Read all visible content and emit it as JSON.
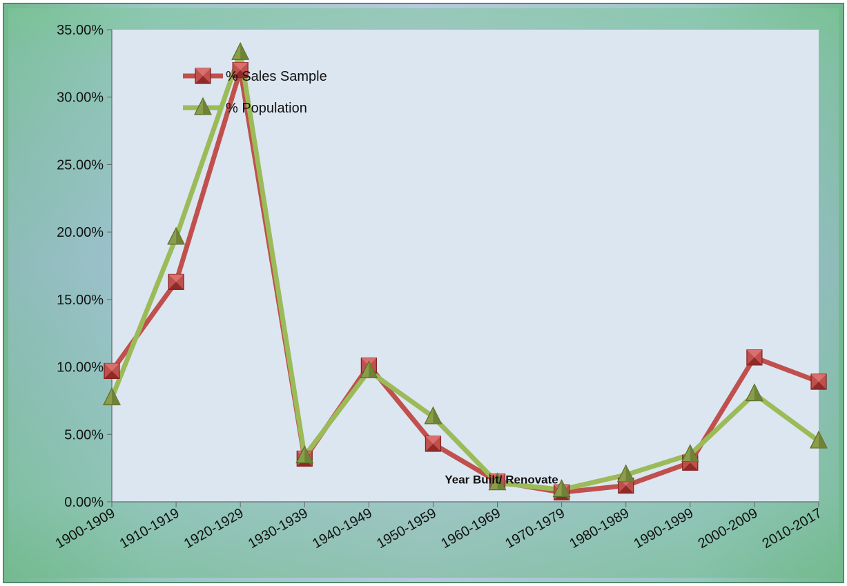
{
  "chart_data": {
    "type": "line",
    "title": "",
    "xlabel": "Year Built/ Renovate",
    "ylabel": "",
    "categories": [
      "1900-1909",
      "1910-1919",
      "1920-1929",
      "1930-1939",
      "1940-1949",
      "1950-1959",
      "1960-1969",
      "1970-1979",
      "1980-1989",
      "1990-1999",
      "2000-2009",
      "2010-2017"
    ],
    "ylim": [
      0,
      0.35
    ],
    "yticks": [
      0,
      0.05,
      0.1,
      0.15,
      0.2,
      0.25,
      0.3,
      0.35
    ],
    "ytick_labels": [
      "0.00%",
      "5.00%",
      "10.00%",
      "15.00%",
      "20.00%",
      "25.00%",
      "30.00%",
      "35.00%"
    ],
    "grid": false,
    "legend_position": "top-left",
    "series": [
      {
        "name": "% Sales Sample",
        "color": "#c0504d",
        "marker": "square",
        "values": [
          0.097,
          0.163,
          0.32,
          0.032,
          0.101,
          0.043,
          0.015,
          0.007,
          0.012,
          0.029,
          0.107,
          0.089
        ]
      },
      {
        "name": "% Population",
        "color": "#9bbb59",
        "marker": "triangle",
        "values": [
          0.077,
          0.196,
          0.333,
          0.034,
          0.097,
          0.063,
          0.014,
          0.009,
          0.02,
          0.035,
          0.08,
          0.045
        ]
      }
    ]
  }
}
